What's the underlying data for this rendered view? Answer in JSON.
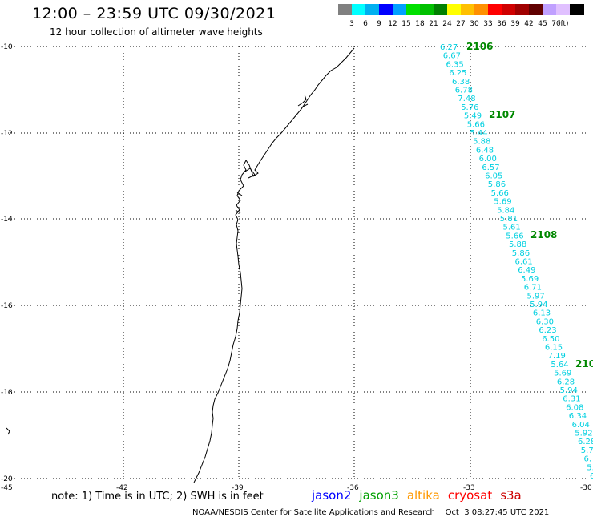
{
  "header": {
    "title": "12:00 – 23:59 UTC 09/30/2021",
    "subtitle": "12 hour collection of altimeter wave heights"
  },
  "colorbar": {
    "swatches": [
      "#808080",
      "#00ffff",
      "#00b0f0",
      "#0000ff",
      "#00a0ff",
      "#00e000",
      "#00c000",
      "#008000",
      "#ffff00",
      "#ffc000",
      "#ff9000",
      "#ff0000",
      "#d00000",
      "#a00000",
      "#600000",
      "#c0a0ff",
      "#e0c0ff",
      "#000000"
    ],
    "labels": [
      "3",
      "6",
      "9",
      "12",
      "15",
      "18",
      "21",
      "24",
      "27",
      "30",
      "33",
      "36",
      "39",
      "42",
      "45",
      "70"
    ],
    "unit": "(ft)"
  },
  "axes": {
    "y_ticks": [
      "-10",
      "-12",
      "-14",
      "-16",
      "-18",
      "-20"
    ],
    "x_ticks": [
      "-45",
      "-42",
      "-39",
      "-36",
      "-33",
      "-30"
    ]
  },
  "passes": [
    {
      "label": "2106",
      "color": "#008800"
    },
    {
      "label": "2107",
      "color": "#008800"
    },
    {
      "label": "2108",
      "color": "#008800"
    },
    {
      "label": "210",
      "color": "#008800"
    }
  ],
  "wave_heights": [
    "6.27",
    "6.67",
    "6.35",
    "6.25",
    "6.38",
    "6.78",
    "7.48",
    "5.76",
    "5.49",
    "5.66",
    "5.44",
    "5.88",
    "6.48",
    "6.00",
    "6.57",
    "6.05",
    "5.86",
    "5.66",
    "5.69",
    "5.84",
    "5.81",
    "5.61",
    "5.66",
    "5.88",
    "5.86",
    "6.61",
    "6.49",
    "5.69",
    "6.71",
    "5.97",
    "5.94",
    "6.13",
    "6.30",
    "6.23",
    "6.50",
    "6.15",
    "7.19",
    "5.64",
    "5.69",
    "6.28",
    "5.94",
    "6.31",
    "6.08",
    "6.34",
    "6.04",
    "5.92",
    "6.28",
    "5.7",
    "6.",
    "5.",
    "6"
  ],
  "legend": [
    {
      "label": "jason2",
      "color": "#0000ff"
    },
    {
      "label": "jason3",
      "color": "#00a000"
    },
    {
      "label": "altika",
      "color": "#ff9900"
    },
    {
      "label": "cryosat",
      "color": "#ff0000"
    },
    {
      "label": "s3a",
      "color": "#cc0000"
    }
  ],
  "footer": {
    "note": "note: 1) Time is in UTC; 2) SWH is in feet",
    "credit": "NOAA/NESDIS Center for Satellite Applications and Research    Oct  3 08:27:45 UTC 2021"
  }
}
